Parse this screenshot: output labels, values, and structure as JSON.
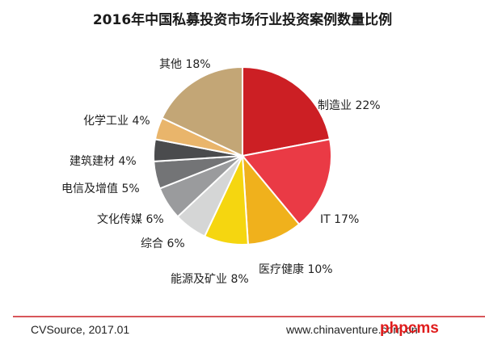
{
  "chart_data": {
    "type": "pie",
    "title": "2016年中国私募投资市场行业投资案例数量比例",
    "slices": [
      {
        "label": "制造业 22%",
        "value": 22,
        "color": "#cc1f24"
      },
      {
        "label": "IT 17%",
        "value": 17,
        "color": "#ea3a45"
      },
      {
        "label": "医疗健康 10%",
        "value": 10,
        "color": "#f0b11c"
      },
      {
        "label": "能源及矿业 8%",
        "value": 8,
        "color": "#f5d610"
      },
      {
        "label": "综合 6%",
        "value": 6,
        "color": "#d5d6d6"
      },
      {
        "label": "文化传媒 6%",
        "value": 6,
        "color": "#9a9b9d"
      },
      {
        "label": "电信及增值 5%",
        "value": 5,
        "color": "#737476"
      },
      {
        "label": "建筑建材 4%",
        "value": 4,
        "color": "#4a4b4d"
      },
      {
        "label": "化学工业 4%",
        "value": 4,
        "color": "#e9b56b"
      },
      {
        "label": "其他 18%",
        "value": 18,
        "color": "#c3a676"
      }
    ]
  },
  "footer": {
    "source": "CVSource, 2017.01",
    "website": "www.chinaventure.com.cn",
    "line_color": "#cc1f24"
  },
  "watermark": {
    "text": "phpcms",
    "color": "#e01c1c"
  }
}
